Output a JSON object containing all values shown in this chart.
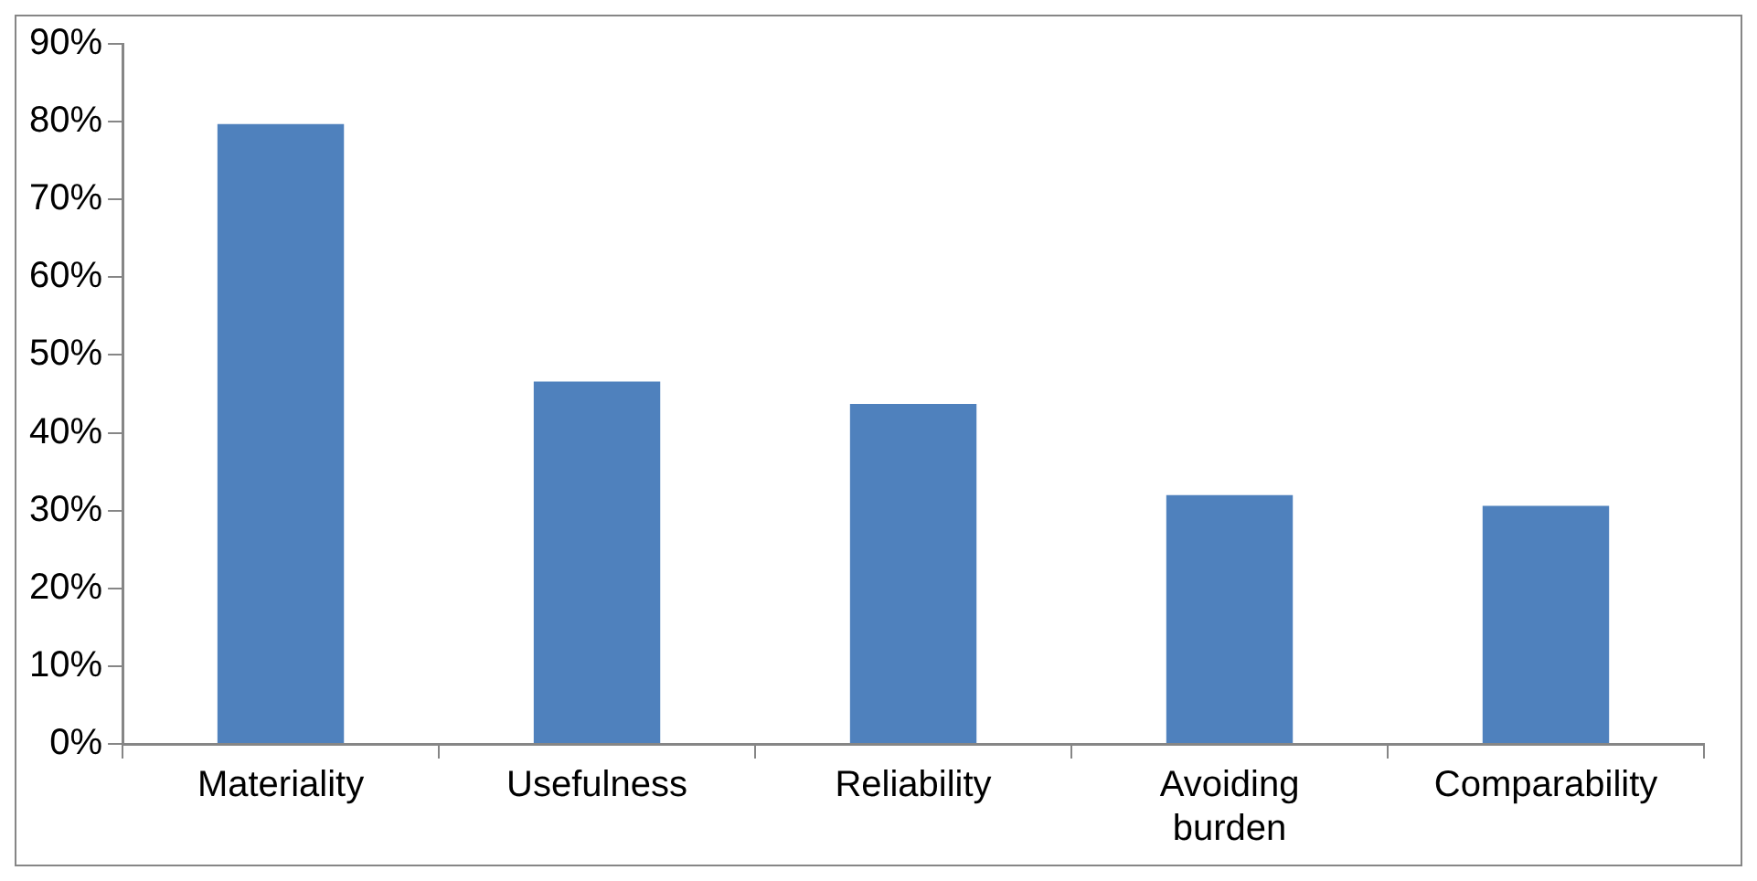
{
  "chart_data": {
    "type": "bar",
    "categories": [
      "Materiality",
      "Usefulness",
      "Reliability",
      "Avoiding burden",
      "Comparability"
    ],
    "values": [
      79.7,
      46.6,
      43.7,
      32,
      30.6
    ],
    "color": "#4f81bd",
    "ylim": [
      0,
      90
    ],
    "yticks": [
      {
        "value": 0,
        "label": "0%"
      },
      {
        "value": 10,
        "label": "10%"
      },
      {
        "value": 20,
        "label": "20%"
      },
      {
        "value": 30,
        "label": "30%"
      },
      {
        "value": 40,
        "label": "40%"
      },
      {
        "value": 50,
        "label": "50%"
      },
      {
        "value": 60,
        "label": "60%"
      },
      {
        "value": 70,
        "label": "70%"
      },
      {
        "value": 80,
        "label": "80%"
      },
      {
        "value": 90,
        "label": "90%"
      }
    ],
    "grid": false,
    "legend": false
  }
}
